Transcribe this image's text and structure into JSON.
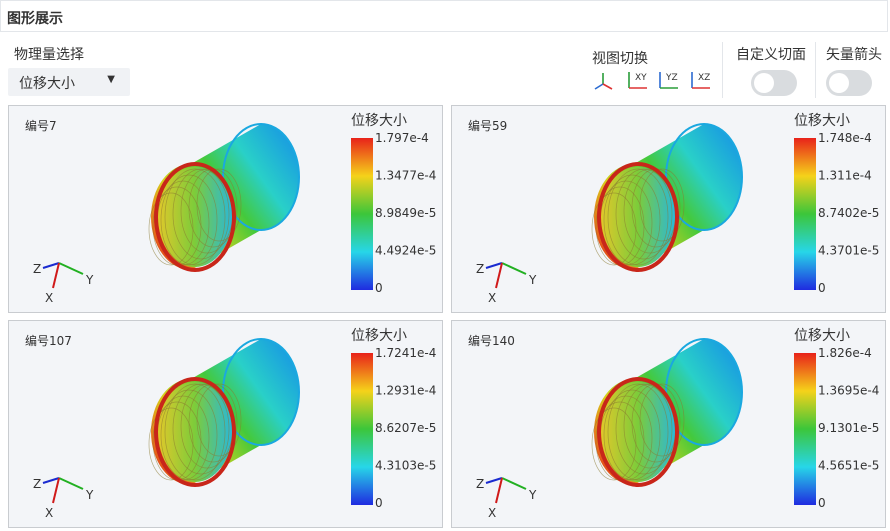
{
  "header": {
    "title": "图形展示"
  },
  "controls": {
    "quantity_label": "物理量选择",
    "quantity_value": "位移大小",
    "view_label": "视图切换",
    "views": [
      "XY",
      "YZ",
      "XZ"
    ],
    "section_label": "自定义切面",
    "arrow_label": "矢量箭头"
  },
  "triad": {
    "z": "Z",
    "y": "Y",
    "x": "X"
  },
  "panels": [
    {
      "label": "编号7",
      "legend_title": "位移大小",
      "ticks": [
        "1.797e-4",
        "1.3477e-4",
        "8.9849e-5",
        "4.4924e-5",
        "0"
      ]
    },
    {
      "label": "编号59",
      "legend_title": "位移大小",
      "ticks": [
        "1.748e-4",
        "1.311e-4",
        "8.7402e-5",
        "4.3701e-5",
        "0"
      ]
    },
    {
      "label": "编号107",
      "legend_title": "位移大小",
      "ticks": [
        "1.7241e-4",
        "1.2931e-4",
        "8.6207e-5",
        "4.3103e-5",
        "0"
      ]
    },
    {
      "label": "编号140",
      "legend_title": "位移大小",
      "ticks": [
        "1.826e-4",
        "1.3695e-4",
        "9.1301e-5",
        "4.5651e-5",
        "0"
      ]
    }
  ]
}
